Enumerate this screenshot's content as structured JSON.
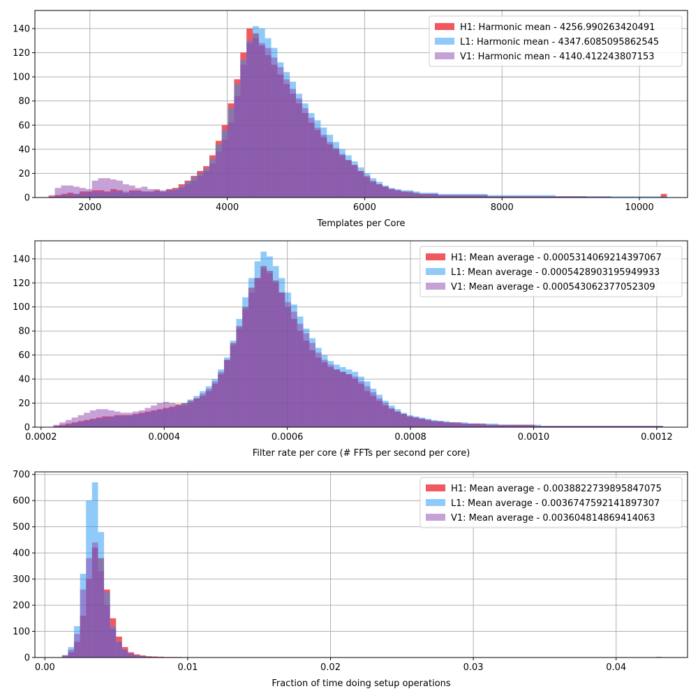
{
  "colors": {
    "H1": "#e8000b",
    "L1": "#2196f3",
    "V1": "#8e44ad",
    "grid": "#b0b0b0"
  },
  "chart_data": [
    {
      "type": "histogram",
      "xlabel": "Templates per Core",
      "xlim": [
        1200,
        10700
      ],
      "ylim": [
        0,
        155
      ],
      "xticks": [
        2000,
        4000,
        6000,
        8000,
        10000
      ],
      "xtick_labels": [
        "2000",
        "4000",
        "6000",
        "8000",
        "10000"
      ],
      "yticks": [
        0,
        20,
        40,
        60,
        80,
        100,
        120,
        140
      ],
      "ytick_labels": [
        "0",
        "20",
        "40",
        "60",
        "80",
        "100",
        "120",
        "140"
      ],
      "grid": true,
      "legend_position": "top-right",
      "bins": {
        "min": 1400,
        "max": 10400,
        "count": 100
      },
      "series": [
        {
          "name": "H1: Harmonic mean  - 4256.990263420491",
          "color": "H1",
          "values": [
            1,
            2,
            3,
            4,
            3,
            5,
            5,
            6,
            6,
            5,
            7,
            6,
            4,
            6,
            6,
            5,
            5,
            6,
            5,
            7,
            8,
            11,
            14,
            18,
            22,
            26,
            35,
            47,
            60,
            78,
            98,
            120,
            140,
            136,
            126,
            118,
            110,
            102,
            94,
            86,
            78,
            70,
            62,
            56,
            50,
            44,
            40,
            35,
            31,
            27,
            22,
            17,
            13,
            11,
            9,
            7,
            6,
            5,
            5,
            4,
            3,
            3,
            3,
            2,
            2,
            2,
            2,
            2,
            2,
            2,
            2,
            1,
            1,
            1,
            1,
            1,
            1,
            1,
            1,
            1,
            1,
            1,
            1,
            1,
            1,
            1,
            1,
            0,
            0,
            0,
            0,
            0,
            0,
            0,
            0,
            0,
            0,
            0,
            0,
            3
          ]
        },
        {
          "name": "L1: Harmonic mean  - 4347.6085095862545",
          "color": "L1",
          "values": [
            0,
            1,
            2,
            2,
            3,
            3,
            4,
            4,
            4,
            4,
            5,
            5,
            5,
            5,
            5,
            5,
            5,
            5,
            5,
            6,
            7,
            9,
            13,
            17,
            20,
            24,
            32,
            44,
            56,
            74,
            94,
            114,
            130,
            142,
            140,
            132,
            124,
            112,
            104,
            96,
            86,
            78,
            70,
            64,
            58,
            52,
            46,
            40,
            35,
            30,
            25,
            20,
            16,
            13,
            10,
            8,
            7,
            6,
            6,
            5,
            4,
            4,
            4,
            3,
            3,
            3,
            3,
            3,
            3,
            3,
            3,
            2,
            2,
            2,
            2,
            2,
            2,
            2,
            2,
            2,
            2,
            2,
            1,
            1,
            1,
            1,
            1,
            1,
            1,
            1,
            1,
            1,
            1,
            1,
            1,
            1,
            1,
            1,
            1,
            1
          ]
        },
        {
          "name": "V1: Harmonic mean  - 4140.412243807153",
          "color": "V1",
          "values": [
            2,
            8,
            10,
            10,
            9,
            8,
            7,
            14,
            16,
            16,
            15,
            14,
            11,
            10,
            8,
            9,
            7,
            7,
            6,
            6,
            6,
            8,
            11,
            14,
            18,
            22,
            28,
            38,
            48,
            62,
            84,
            110,
            128,
            132,
            128,
            124,
            116,
            108,
            98,
            90,
            82,
            74,
            66,
            58,
            52,
            46,
            41,
            36,
            31,
            27,
            22,
            18,
            14,
            11,
            9,
            7,
            6,
            5,
            4,
            3,
            3,
            3,
            3,
            2,
            2,
            2,
            2,
            2,
            2,
            2,
            2,
            1,
            1,
            1,
            1,
            1,
            1,
            1,
            1,
            1,
            1,
            1,
            1,
            1,
            1,
            1,
            1,
            1,
            1,
            1,
            1,
            0,
            0,
            0,
            0,
            0,
            0,
            0,
            0,
            0
          ]
        }
      ]
    },
    {
      "type": "histogram",
      "xlabel": "Filter rate per core (# FFTs per second per core)",
      "xlim": [
        0.00019,
        0.00125
      ],
      "ylim": [
        0,
        155
      ],
      "xticks": [
        0.0002,
        0.0004,
        0.0006,
        0.0008,
        0.001,
        0.0012
      ],
      "xtick_labels": [
        "0.0002",
        "0.0004",
        "0.0006",
        "0.0008",
        "0.0010",
        "0.0012"
      ],
      "yticks": [
        0,
        20,
        40,
        60,
        80,
        100,
        120,
        140
      ],
      "ytick_labels": [
        "0",
        "20",
        "40",
        "60",
        "80",
        "100",
        "120",
        "140"
      ],
      "grid": true,
      "legend_position": "top-right",
      "bins": {
        "min": 0.00022,
        "max": 0.00121,
        "count": 100
      },
      "series": [
        {
          "name": "H1: Mean average - 0.0005314069214397067",
          "color": "H1",
          "values": [
            1,
            2,
            3,
            4,
            5,
            6,
            7,
            8,
            9,
            9,
            10,
            10,
            10,
            11,
            12,
            13,
            14,
            15,
            16,
            17,
            19,
            20,
            22,
            24,
            26,
            30,
            36,
            44,
            56,
            70,
            84,
            100,
            116,
            124,
            134,
            130,
            122,
            112,
            100,
            90,
            80,
            72,
            64,
            58,
            54,
            50,
            48,
            46,
            44,
            40,
            36,
            30,
            26,
            22,
            18,
            15,
            13,
            11,
            9,
            8,
            7,
            6,
            5,
            5,
            4,
            4,
            4,
            3,
            3,
            3,
            3,
            2,
            2,
            2,
            2,
            2,
            2,
            2,
            2,
            1,
            1,
            1,
            1,
            1,
            1,
            1,
            1,
            1,
            1,
            1,
            1,
            1,
            1,
            1,
            1,
            1,
            1,
            1,
            1,
            1
          ]
        },
        {
          "name": "L1: Mean average - 0.0005428903195949933",
          "color": "L1",
          "values": [
            1,
            1,
            2,
            3,
            4,
            5,
            6,
            7,
            8,
            8,
            9,
            9,
            10,
            10,
            11,
            12,
            13,
            14,
            15,
            16,
            18,
            20,
            23,
            26,
            30,
            34,
            40,
            48,
            58,
            72,
            90,
            108,
            124,
            138,
            146,
            142,
            134,
            124,
            112,
            102,
            92,
            82,
            74,
            66,
            60,
            55,
            52,
            50,
            48,
            46,
            42,
            38,
            32,
            27,
            22,
            18,
            15,
            12,
            10,
            9,
            8,
            7,
            6,
            5,
            5,
            4,
            4,
            4,
            3,
            3,
            3,
            3,
            3,
            2,
            2,
            2,
            2,
            2,
            2,
            2,
            1,
            1,
            1,
            1,
            1,
            1,
            1,
            1,
            1,
            1,
            1,
            1,
            1,
            1,
            1,
            1,
            1,
            1,
            1,
            1
          ]
        },
        {
          "name": "V1: Mean average - 0.000543062377052309",
          "color": "V1",
          "values": [
            2,
            4,
            6,
            8,
            10,
            12,
            14,
            15,
            15,
            14,
            13,
            12,
            12,
            13,
            14,
            16,
            18,
            20,
            21,
            20,
            18,
            18,
            20,
            24,
            28,
            32,
            38,
            46,
            56,
            68,
            82,
            98,
            112,
            124,
            132,
            128,
            120,
            112,
            104,
            96,
            86,
            78,
            70,
            62,
            56,
            52,
            48,
            46,
            44,
            42,
            38,
            34,
            29,
            24,
            20,
            16,
            13,
            11,
            9,
            8,
            7,
            6,
            5,
            5,
            4,
            4,
            3,
            3,
            3,
            3,
            2,
            2,
            2,
            2,
            2,
            2,
            2,
            2,
            2,
            1,
            1,
            1,
            1,
            1,
            1,
            1,
            1,
            1,
            1,
            1,
            1,
            1,
            1,
            1,
            1,
            1,
            1,
            1,
            1,
            1
          ]
        }
      ]
    },
    {
      "type": "histogram",
      "xlabel": "Fraction of time doing setup operations",
      "xlim": [
        -0.0007,
        0.045
      ],
      "ylim": [
        0,
        710
      ],
      "xticks": [
        0.0,
        0.01,
        0.02,
        0.03,
        0.04
      ],
      "xtick_labels": [
        "0.00",
        "0.01",
        "0.02",
        "0.03",
        "0.04"
      ],
      "yticks": [
        0,
        100,
        200,
        300,
        400,
        500,
        600,
        700
      ],
      "ytick_labels": [
        "0",
        "100",
        "200",
        "300",
        "400",
        "500",
        "600",
        "700"
      ],
      "grid": true,
      "legend_position": "top-right",
      "bins": {
        "min": 0.0012,
        "max": 0.0432,
        "count": 100
      },
      "series": [
        {
          "name": "H1: Mean average - 0.0038822739895847075",
          "color": "H1",
          "values": [
            5,
            20,
            60,
            160,
            300,
            420,
            380,
            260,
            150,
            80,
            40,
            20,
            12,
            8,
            5,
            4,
            3,
            2,
            2,
            2,
            1,
            1,
            1,
            1,
            1,
            1,
            1,
            1,
            1,
            1,
            1,
            1,
            1,
            1,
            1,
            1,
            1,
            1,
            1,
            1,
            1,
            1,
            1,
            1,
            1,
            1,
            1,
            1,
            1,
            1,
            1,
            1,
            1,
            1,
            1,
            1,
            1,
            1,
            1,
            1,
            1,
            1,
            1,
            1,
            1,
            1,
            1,
            1,
            1,
            1,
            1,
            1,
            1,
            1,
            1,
            1,
            1,
            1,
            1,
            1,
            1,
            1,
            1,
            1,
            1,
            1,
            1,
            1,
            1,
            1,
            1,
            1,
            1,
            1,
            1,
            1,
            1,
            1,
            1,
            1
          ]
        },
        {
          "name": "L1: Mean average - 0.003674759214189730​7",
          "color": "L1",
          "values": [
            10,
            40,
            120,
            320,
            600,
            670,
            480,
            250,
            120,
            60,
            30,
            15,
            8,
            5,
            3,
            2,
            2,
            1,
            1,
            1,
            1,
            1,
            1,
            1,
            1,
            1,
            1,
            1,
            1,
            1,
            1,
            1,
            1,
            1,
            1,
            1,
            1,
            1,
            1,
            1,
            1,
            1,
            1,
            1,
            1,
            1,
            1,
            1,
            1,
            1,
            1,
            1,
            1,
            1,
            1,
            1,
            1,
            1,
            1,
            1,
            1,
            1,
            1,
            1,
            1,
            1,
            1,
            1,
            1,
            1,
            1,
            1,
            1,
            1,
            1,
            1,
            1,
            1,
            1,
            1,
            1,
            1,
            1,
            1,
            1,
            1,
            1,
            1,
            1,
            1,
            1,
            1,
            1,
            1,
            1,
            1,
            1,
            1,
            1,
            3
          ]
        },
        {
          "name": "V1: Mean average - 0.003604814869414063",
          "color": "V1",
          "values": [
            8,
            30,
            90,
            260,
            380,
            440,
            330,
            200,
            110,
            60,
            30,
            15,
            8,
            5,
            3,
            2,
            2,
            1,
            1,
            1,
            1,
            1,
            1,
            1,
            1,
            1,
            1,
            1,
            1,
            1,
            1,
            1,
            1,
            1,
            1,
            1,
            1,
            1,
            1,
            1,
            1,
            1,
            1,
            1,
            1,
            1,
            1,
            1,
            1,
            1,
            1,
            1,
            1,
            1,
            1,
            1,
            1,
            1,
            1,
            1,
            1,
            1,
            1,
            1,
            1,
            1,
            1,
            1,
            1,
            1,
            1,
            1,
            1,
            1,
            1,
            1,
            1,
            1,
            1,
            1,
            1,
            1,
            1,
            1,
            1,
            1,
            1,
            1,
            1,
            1,
            1,
            1,
            1,
            1,
            1,
            1,
            1,
            1,
            1,
            1
          ]
        }
      ]
    }
  ]
}
